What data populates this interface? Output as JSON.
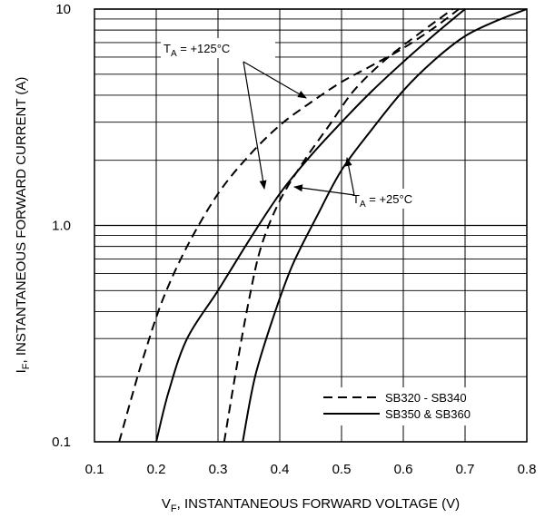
{
  "chart_data": {
    "type": "line",
    "xlabel": "V",
    "xlabel_sub": "F",
    "xlabel_rest": ", INSTANTANEOUS FORWARD VOLTAGE (V)",
    "ylabel": "I",
    "ylabel_sub": "F",
    "ylabel_rest": ", INSTANTANEOUS FORWARD CURRENT (A)",
    "xlim": [
      0.1,
      0.8
    ],
    "ylim": [
      0.1,
      10
    ],
    "yscale": "log",
    "grid": true,
    "x_ticks": [
      "0.1",
      "0.2",
      "0.3",
      "0.4",
      "0.5",
      "0.6",
      "0.7",
      "0.8"
    ],
    "y_ticks": [
      "0.1",
      "1.0",
      "10"
    ],
    "annotations": [
      {
        "main": "T",
        "sub": "A",
        "rest": " = +125°C"
      },
      {
        "main": "T",
        "sub": "A",
        "rest": " = +25°C"
      }
    ],
    "legend": {
      "position": "bottom-right",
      "entries": [
        {
          "name": "SB320 - SB340",
          "style": "dashed"
        },
        {
          "name": "SB350 & SB360",
          "style": "solid"
        }
      ]
    },
    "series": [
      {
        "name": "SB320 - SB340",
        "condition": "+125°C",
        "style": "dashed",
        "points": [
          [
            0.14,
            0.1
          ],
          [
            0.16,
            0.16
          ],
          [
            0.18,
            0.25
          ],
          [
            0.21,
            0.45
          ],
          [
            0.25,
            0.8
          ],
          [
            0.3,
            1.4
          ],
          [
            0.35,
            2.1
          ],
          [
            0.4,
            2.9
          ],
          [
            0.45,
            3.7
          ],
          [
            0.5,
            4.6
          ],
          [
            0.55,
            5.5
          ],
          [
            0.6,
            6.6
          ],
          [
            0.65,
            8.2
          ],
          [
            0.69,
            10
          ]
        ]
      },
      {
        "name": "SB350 & SB360",
        "condition": "+125°C",
        "style": "solid",
        "points": [
          [
            0.2,
            0.1
          ],
          [
            0.22,
            0.17
          ],
          [
            0.25,
            0.3
          ],
          [
            0.3,
            0.5
          ],
          [
            0.35,
            0.85
          ],
          [
            0.4,
            1.4
          ],
          [
            0.45,
            2.1
          ],
          [
            0.5,
            3.0
          ],
          [
            0.55,
            4.2
          ],
          [
            0.6,
            5.7
          ],
          [
            0.65,
            7.6
          ],
          [
            0.7,
            10
          ]
        ]
      },
      {
        "name": "SB320 - SB340",
        "condition": "+25°C",
        "style": "dashed",
        "points": [
          [
            0.31,
            0.1
          ],
          [
            0.33,
            0.22
          ],
          [
            0.35,
            0.45
          ],
          [
            0.37,
            0.8
          ],
          [
            0.4,
            1.3
          ],
          [
            0.44,
            2.0
          ],
          [
            0.48,
            2.9
          ],
          [
            0.52,
            4.2
          ],
          [
            0.57,
            5.8
          ],
          [
            0.62,
            7.5
          ],
          [
            0.68,
            10
          ]
        ]
      },
      {
        "name": "SB350 & SB360",
        "condition": "+25°C",
        "style": "solid",
        "points": [
          [
            0.34,
            0.1
          ],
          [
            0.36,
            0.2
          ],
          [
            0.39,
            0.38
          ],
          [
            0.42,
            0.65
          ],
          [
            0.46,
            1.1
          ],
          [
            0.5,
            1.8
          ],
          [
            0.55,
            2.8
          ],
          [
            0.6,
            4.2
          ],
          [
            0.65,
            5.8
          ],
          [
            0.7,
            7.5
          ],
          [
            0.75,
            8.8
          ],
          [
            0.8,
            10
          ]
        ]
      }
    ]
  }
}
